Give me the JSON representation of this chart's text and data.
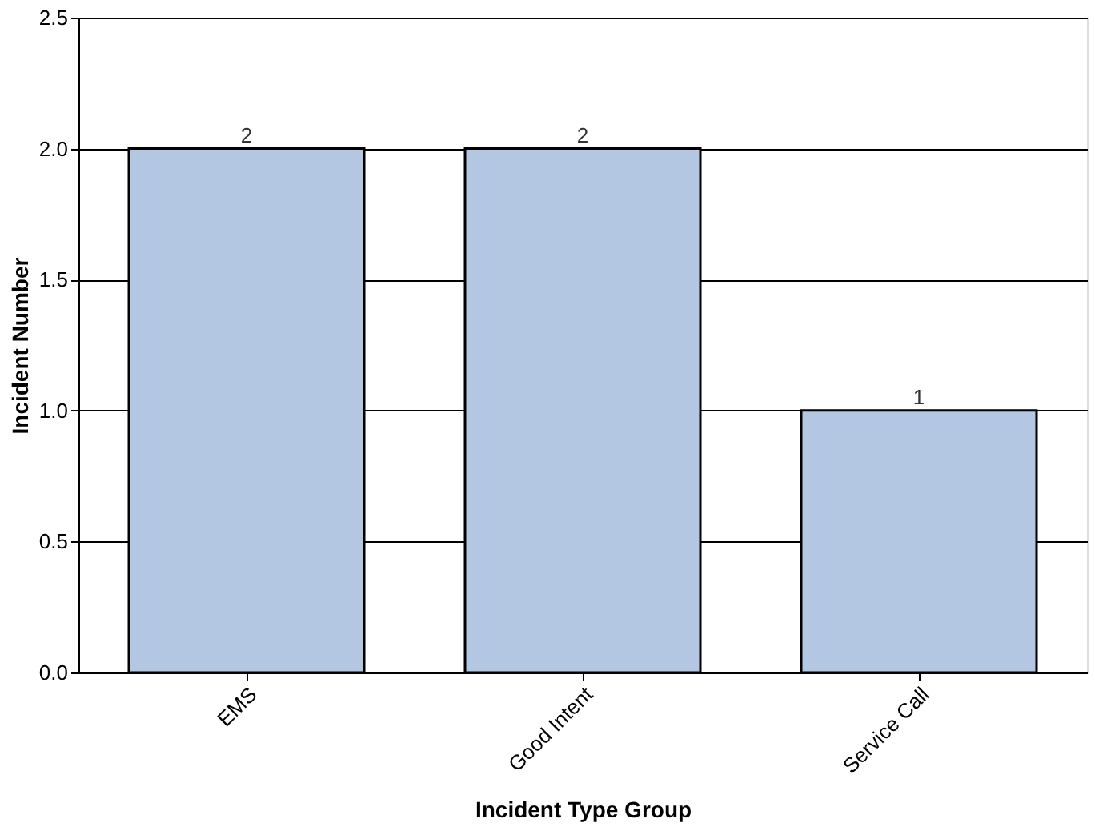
{
  "chart_data": {
    "type": "bar",
    "xlabel": "Incident Type Group",
    "ylabel": "Incident Number",
    "categories": [
      "EMS",
      "Good Intent",
      "Service Call"
    ],
    "values": [
      2,
      2,
      1
    ],
    "color": "#b3c7e3",
    "ylim": [
      0,
      2.5
    ],
    "yticks": [
      {
        "value": 0,
        "label": "0.0"
      },
      0.5,
      {
        "value": 1,
        "label": "1.0"
      },
      1.5,
      {
        "value": 2,
        "label": "2.0"
      },
      2.5
    ],
    "grid": "y",
    "data_labels": true
  }
}
